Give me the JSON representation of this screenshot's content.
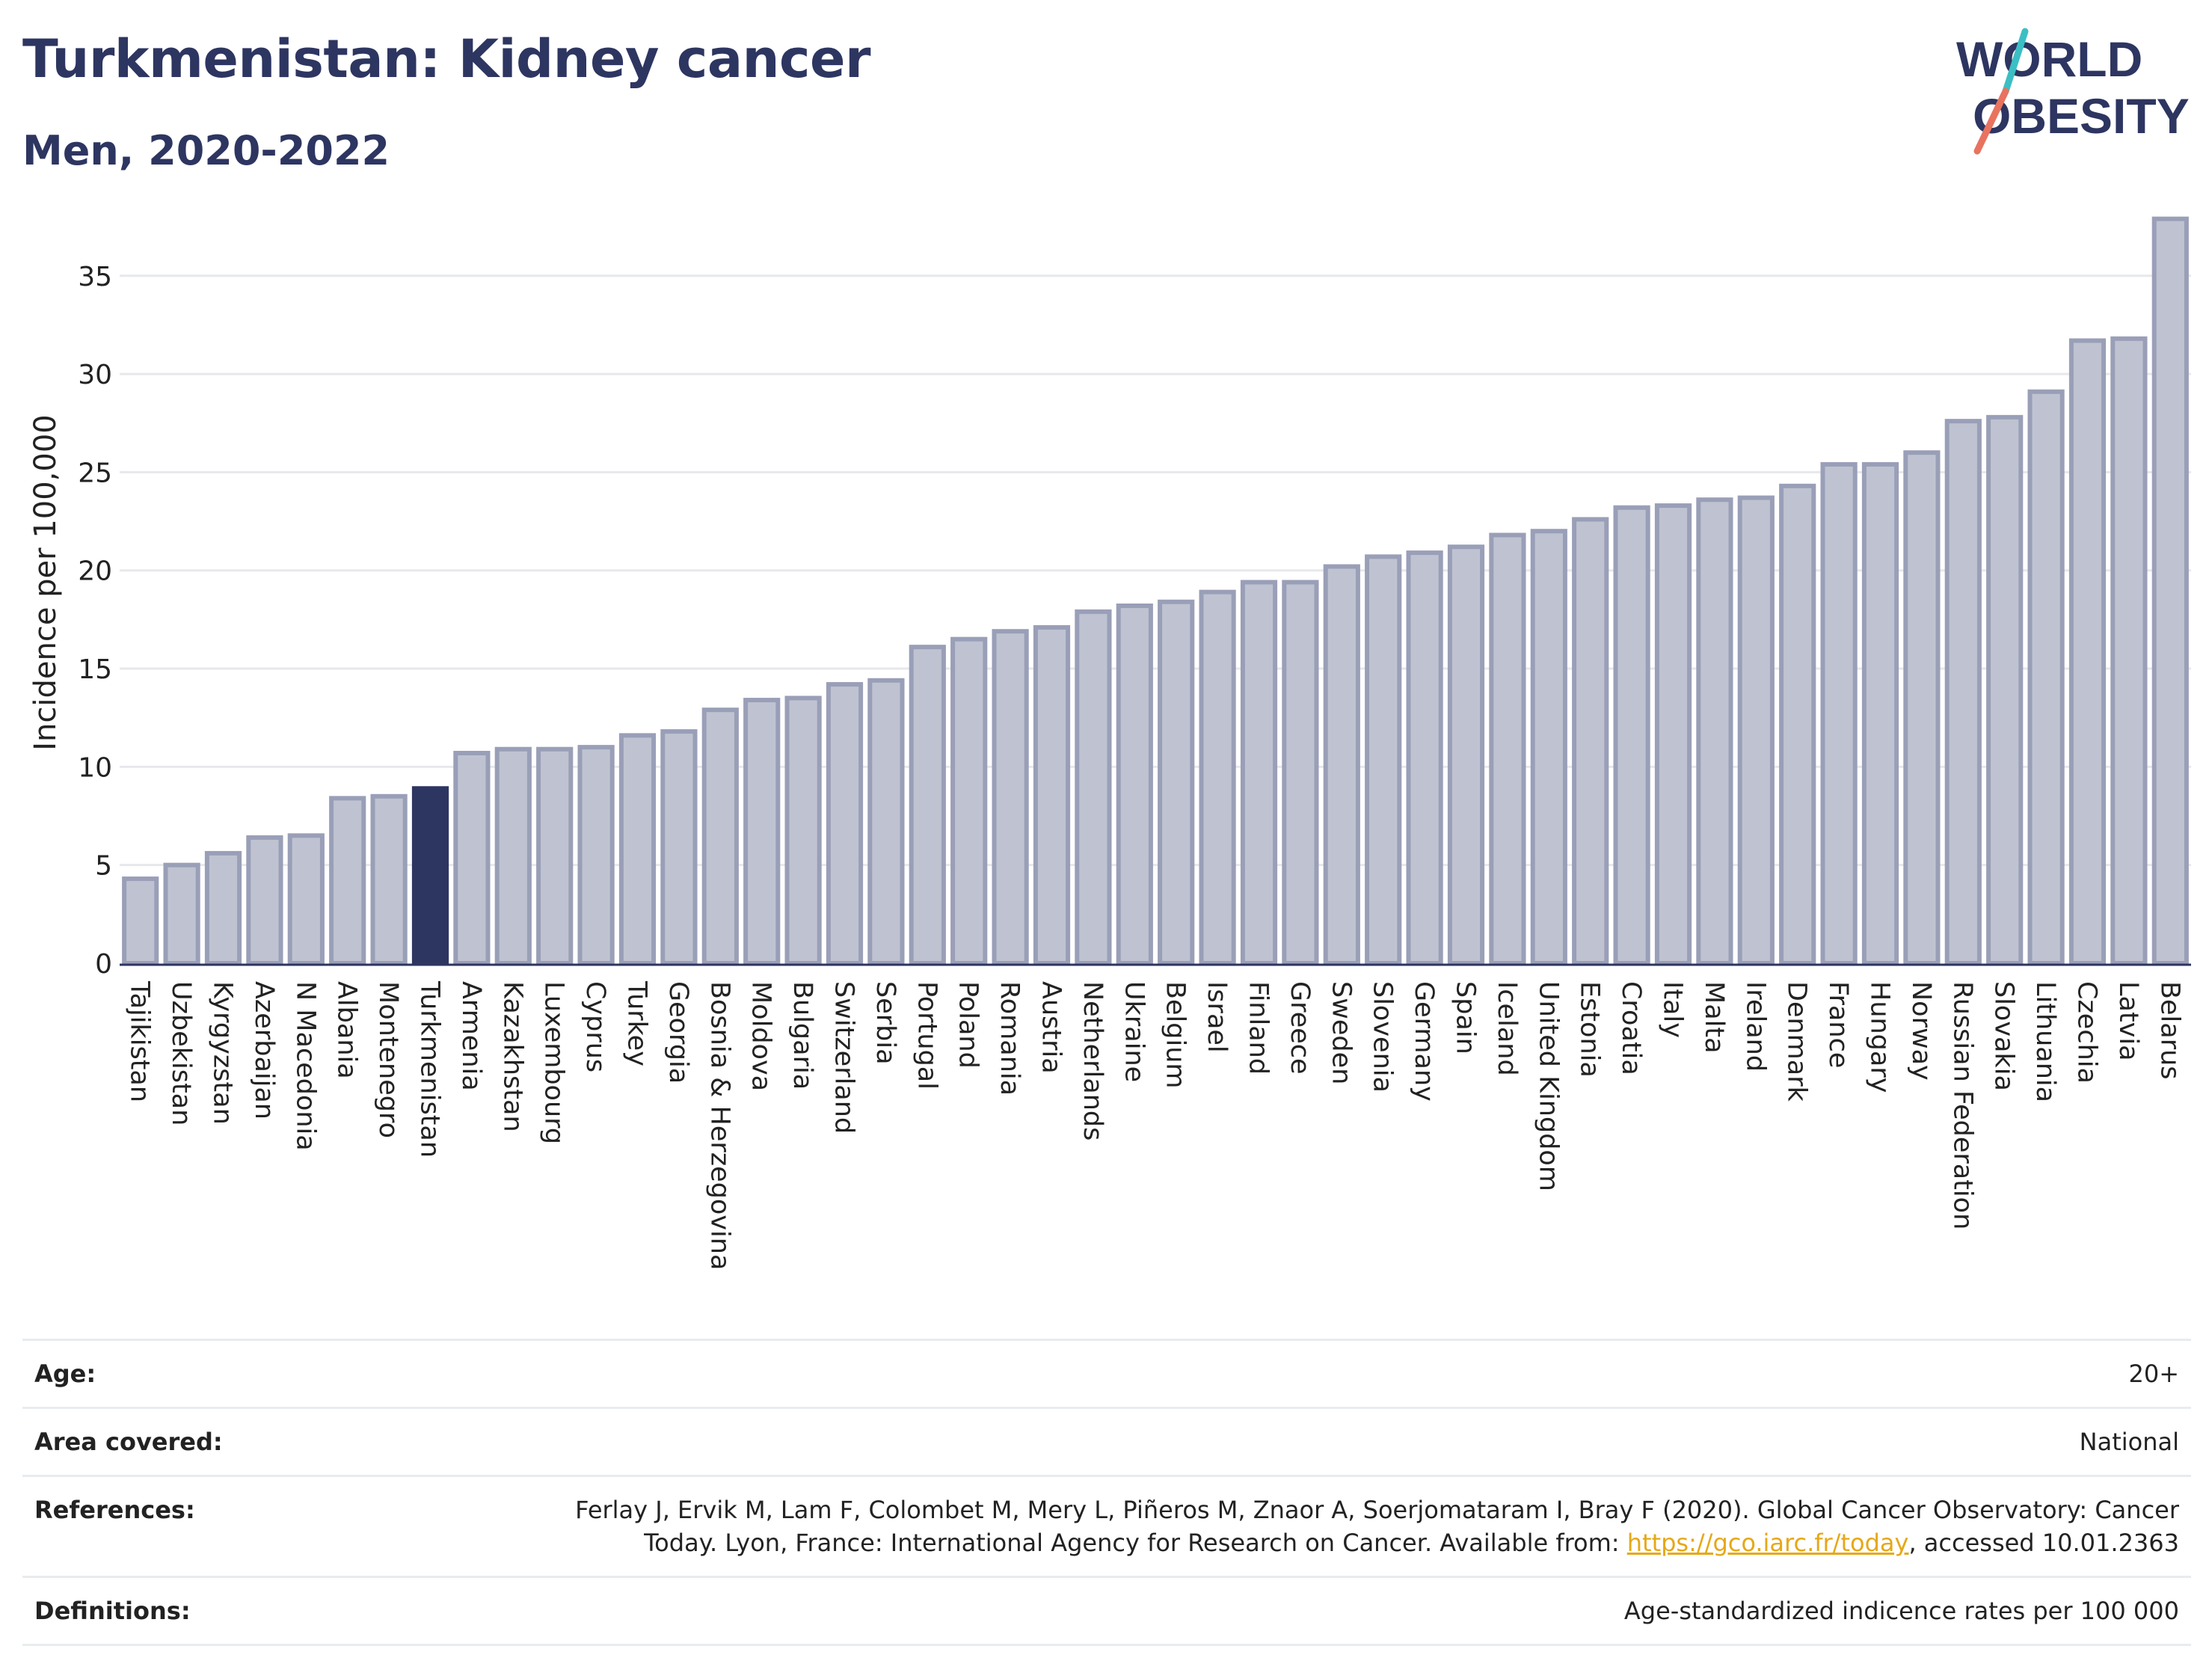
{
  "header": {
    "title": "Turkmenistan: Kidney cancer",
    "subtitle": "Men, 2020-2022"
  },
  "logo": {
    "line1": "WORLD",
    "line2": "OBESITY"
  },
  "chart_data": {
    "type": "bar",
    "ylabel": "Incidence per 100,000",
    "ylim": [
      0,
      38
    ],
    "yticks": [
      0,
      5,
      10,
      15,
      20,
      25,
      30,
      35
    ],
    "grid": true,
    "highlight": "Turkmenistan",
    "bar_color": "#bfc3d1",
    "bar_edge_color": "#9a9fb8",
    "highlight_color": "#2d3561",
    "categories": [
      "Tajikistan",
      "Uzbekistan",
      "Kyrgyzstan",
      "Azerbaijan",
      "N Macedonia",
      "Albania",
      "Montenegro",
      "Turkmenistan",
      "Armenia",
      "Kazakhstan",
      "Luxembourg",
      "Cyprus",
      "Turkey",
      "Georgia",
      "Bosnia & Herzegovina",
      "Moldova",
      "Bulgaria",
      "Switzerland",
      "Serbia",
      "Portugal",
      "Poland",
      "Romania",
      "Austria",
      "Netherlands",
      "Ukraine",
      "Belgium",
      "Israel",
      "Finland",
      "Greece",
      "Sweden",
      "Slovenia",
      "Germany",
      "Spain",
      "Iceland",
      "United Kingdom",
      "Estonia",
      "Croatia",
      "Italy",
      "Malta",
      "Ireland",
      "Denmark",
      "France",
      "Hungary",
      "Norway",
      "Russian Federation",
      "Slovakia",
      "Lithuania",
      "Czechia",
      "Latvia",
      "Belarus"
    ],
    "values": [
      4.3,
      5.0,
      5.6,
      6.4,
      6.5,
      8.4,
      8.5,
      8.9,
      10.7,
      10.9,
      10.9,
      11.0,
      11.6,
      11.8,
      12.9,
      13.4,
      13.5,
      14.2,
      14.4,
      16.1,
      16.5,
      16.9,
      17.1,
      17.9,
      18.2,
      18.4,
      18.9,
      19.4,
      19.4,
      20.2,
      20.7,
      20.9,
      21.2,
      21.8,
      22.0,
      22.6,
      23.2,
      23.3,
      23.6,
      23.7,
      24.3,
      25.4,
      25.4,
      26.0,
      27.6,
      27.8,
      29.1,
      31.7,
      31.8,
      37.9
    ]
  },
  "info": {
    "age": {
      "label": "Age:",
      "value": "20+"
    },
    "area": {
      "label": "Area covered:",
      "value": "National"
    },
    "references": {
      "label": "References:",
      "line1": "Ferlay J, Ervik M, Lam F, Colombet M, Mery L, Piñeros M, Znaor A, Soerjomataram I, Bray F (2020). Global Cancer Observatory: Cancer",
      "line2_pre": "Today. Lyon, France: International Agency for Research on Cancer. Available from: ",
      "link": "https://gco.iarc.fr/today",
      "line2_post": ", accessed 10.01.2363"
    },
    "definitions": {
      "label": "Definitions:",
      "value": "Age-standardized indicence rates per 100 000"
    }
  }
}
